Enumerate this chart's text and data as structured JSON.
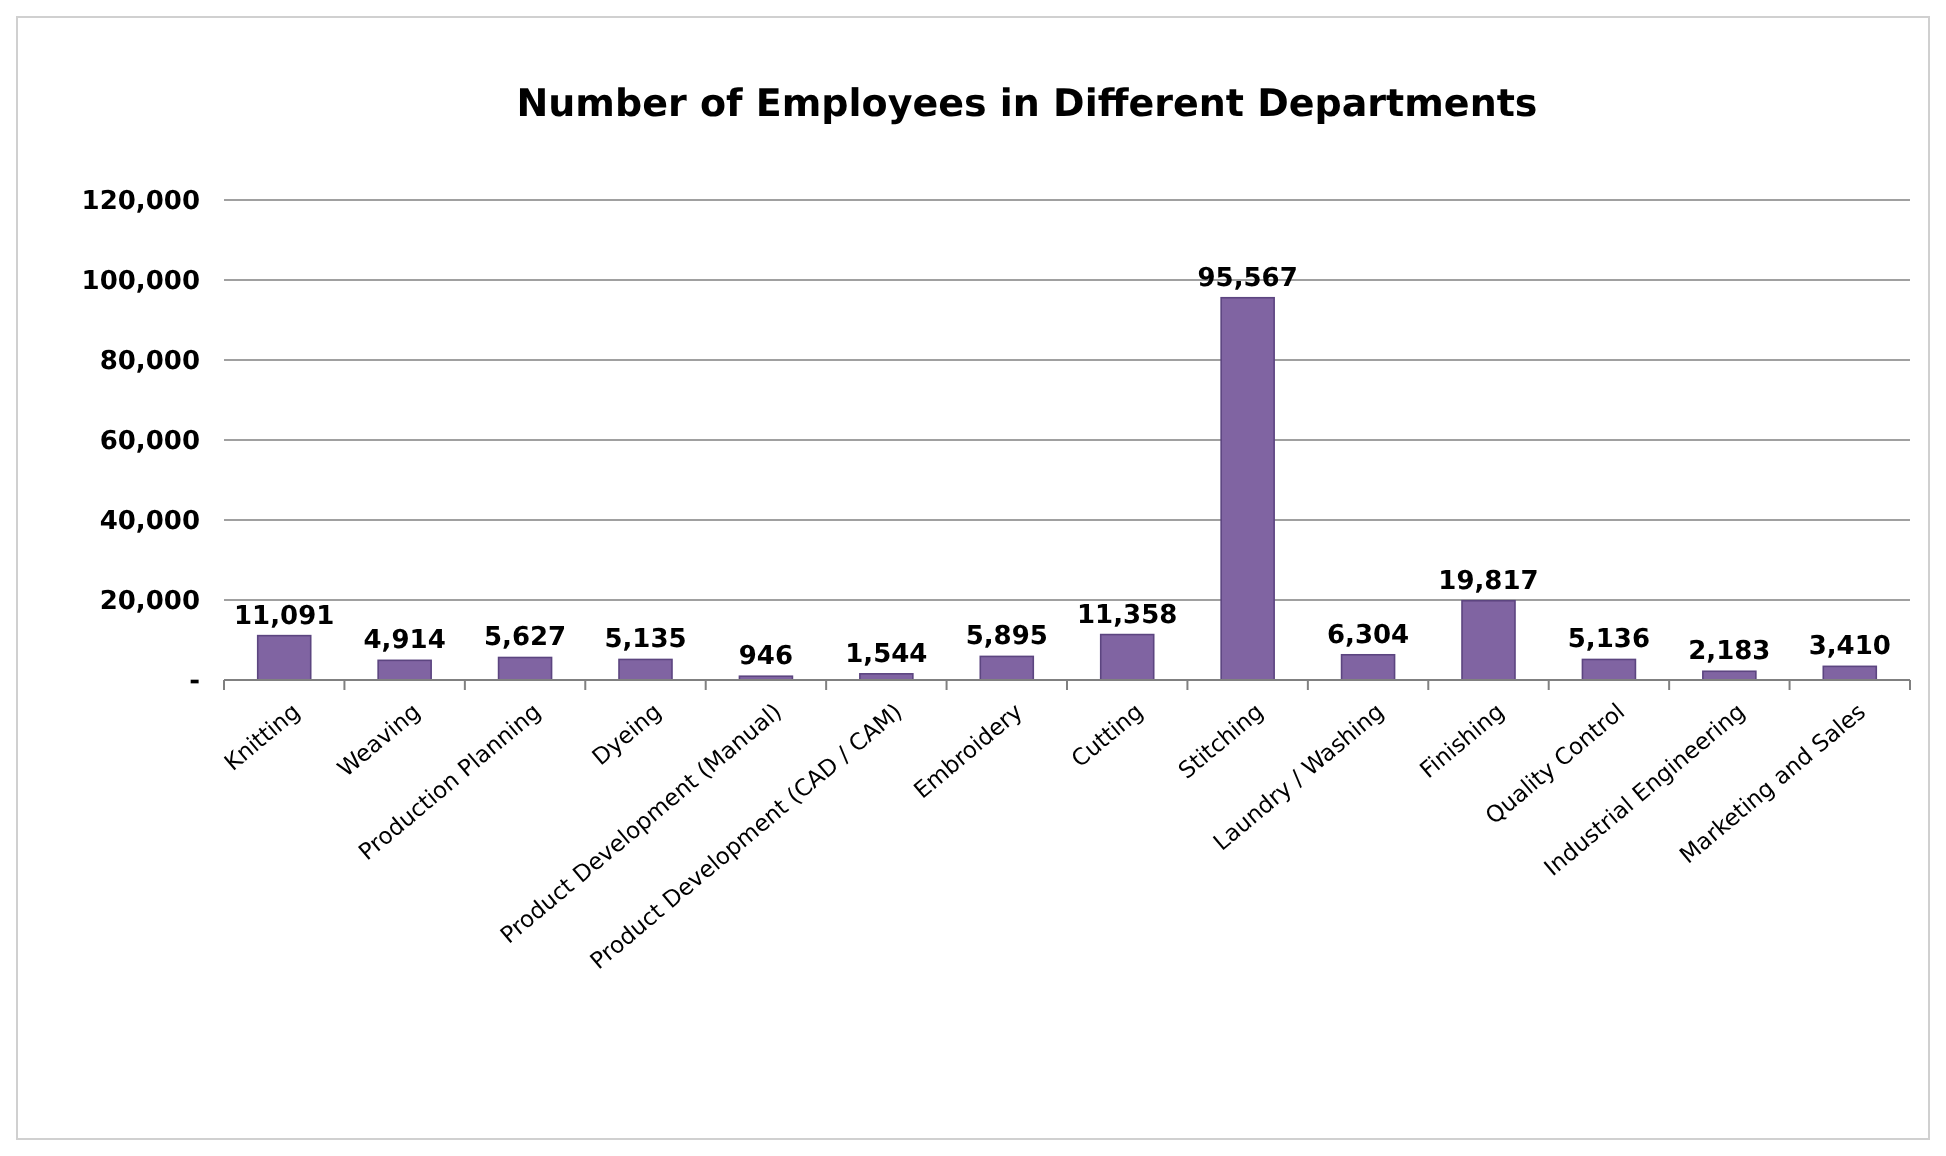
{
  "chart_data": {
    "type": "bar",
    "title": "Number of Employees in Different Departments",
    "categories": [
      "Knitting",
      "Weaving",
      "Production Planning",
      "Dyeing",
      "Product Development (Manual)",
      "Product Development (CAD / CAM)",
      "Embroidery",
      "Cutting",
      "Stitching",
      "Laundry / Washing",
      "Finishing",
      "Quality Control",
      "Industrial Engineering",
      "Marketing and Sales"
    ],
    "values": [
      11091,
      4914,
      5627,
      5135,
      946,
      1544,
      5895,
      11358,
      95567,
      6304,
      19817,
      5136,
      2183,
      3410
    ],
    "color": "#8064a2",
    "ylim": [
      0,
      120000
    ],
    "yticks": [
      {
        "value": 0,
        "label": "-"
      },
      {
        "value": 20000,
        "label": "20,000"
      },
      {
        "value": 40000,
        "label": "40,000"
      },
      {
        "value": 60000,
        "label": "60,000"
      },
      {
        "value": 80000,
        "label": "80,000"
      },
      {
        "value": 100000,
        "label": "100,000"
      },
      {
        "value": 120000,
        "label": "120,000"
      }
    ],
    "value_labels": [
      "11,091",
      "4,914",
      "5,627",
      "5,135",
      "946",
      "1,544",
      "5,895",
      "11,358",
      "95,567",
      "6,304",
      "19,817",
      "5,136",
      "2,183",
      "3,410"
    ],
    "grid": "y"
  }
}
